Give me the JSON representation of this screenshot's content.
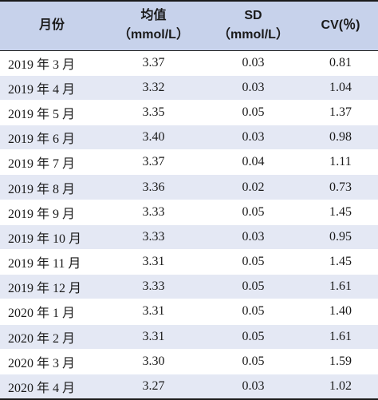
{
  "table": {
    "headers": {
      "month": "月份",
      "mean_line1": "均值",
      "mean_line2": "（mmol/L）",
      "sd_line1": "SD",
      "sd_line2": "（mmol/L）",
      "cv": "CV(％)"
    },
    "rows": [
      {
        "month": "2019 年 3 月",
        "mean": "3.37",
        "sd": "0.03",
        "cv": "0.81"
      },
      {
        "month": "2019 年 4 月",
        "mean": "3.32",
        "sd": "0.03",
        "cv": "1.04"
      },
      {
        "month": "2019 年 5 月",
        "mean": "3.35",
        "sd": "0.05",
        "cv": "1.37"
      },
      {
        "month": "2019 年 6 月",
        "mean": "3.40",
        "sd": "0.03",
        "cv": "0.98"
      },
      {
        "month": "2019 年 7 月",
        "mean": "3.37",
        "sd": "0.04",
        "cv": "1.11"
      },
      {
        "month": "2019 年 8 月",
        "mean": "3.36",
        "sd": "0.02",
        "cv": "0.73"
      },
      {
        "month": "2019 年 9 月",
        "mean": "3.33",
        "sd": "0.05",
        "cv": "1.45"
      },
      {
        "month": "2019 年 10 月",
        "mean": "3.33",
        "sd": "0.03",
        "cv": "0.95"
      },
      {
        "month": "2019 年 11 月",
        "mean": "3.31",
        "sd": "0.05",
        "cv": "1.45"
      },
      {
        "month": "2019 年 12 月",
        "mean": "3.33",
        "sd": "0.05",
        "cv": "1.61"
      },
      {
        "month": "2020 年 1 月",
        "mean": "3.31",
        "sd": "0.05",
        "cv": "1.40"
      },
      {
        "month": "2020 年 2 月",
        "mean": "3.31",
        "sd": "0.05",
        "cv": "1.61"
      },
      {
        "month": "2020 年 3 月",
        "mean": "3.30",
        "sd": "0.05",
        "cv": "1.59"
      },
      {
        "month": "2020 年 4 月",
        "mean": "3.27",
        "sd": "0.03",
        "cv": "1.02"
      }
    ]
  },
  "colors": {
    "header_bg": "#c7d2eb",
    "row_alt_bg": "#e4e8f4",
    "row_bg": "#ffffff",
    "rule": "#1a1a1a"
  }
}
